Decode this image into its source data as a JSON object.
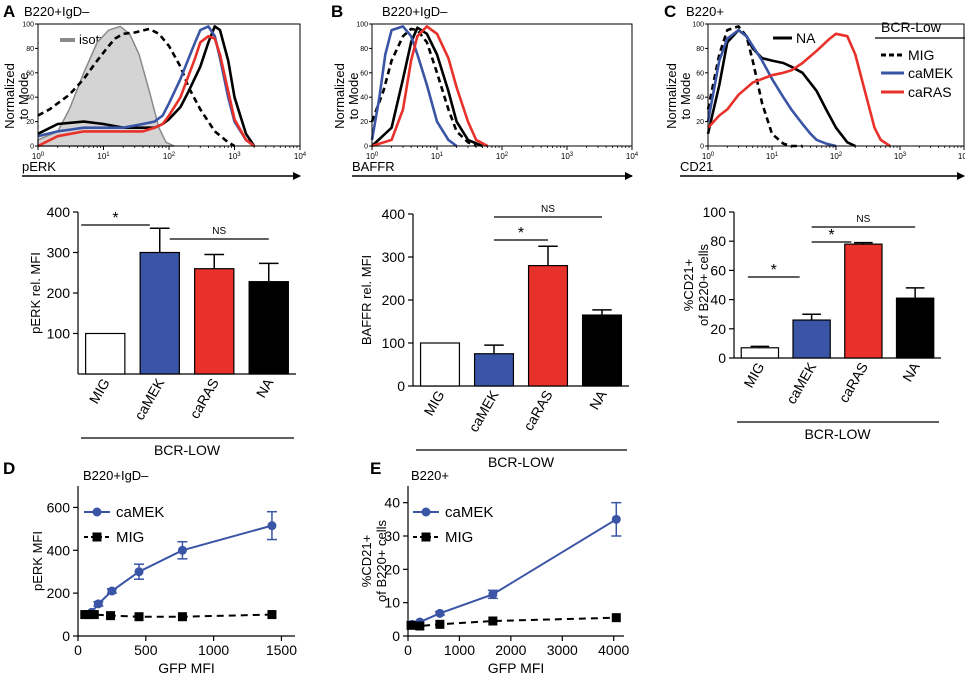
{
  "colors": {
    "mig": "#000000",
    "camek": "#3a55a6",
    "caras": "#e8312a",
    "na": "#000000",
    "isotype_fill": "#d4d4d4",
    "isotype_line": "#8a8a8a"
  },
  "panels": {
    "A": {
      "label": "A",
      "subtitle": "B220+IgD–"
    },
    "B": {
      "label": "B",
      "subtitle": "B220+IgD–"
    },
    "C": {
      "label": "C",
      "subtitle": "B220+"
    },
    "D": {
      "label": "D",
      "subtitle": "B220+IgD–"
    },
    "E": {
      "label": "E",
      "subtitle": "B220+"
    }
  },
  "histogram_ylabel": [
    "Normalized",
    "to Mode"
  ],
  "legend_c": {
    "title": "BCR-Low",
    "na": "NA",
    "items": [
      "MIG",
      "caMEK",
      "caRAS"
    ]
  },
  "isotype_label": "isotype",
  "bcr_low_label": "BCR-LOW",
  "chart_data": [
    {
      "id": "A-hist",
      "type": "line",
      "subtitle": "B220+IgD–",
      "xlabel": "pERK",
      "ylabel": "Normalized to Mode",
      "xscale": "log",
      "xlim": [
        1,
        10000
      ],
      "ylim": [
        0,
        100
      ],
      "xticks": [
        "10^0",
        "10^1",
        "10^2",
        "10^3",
        "10^4"
      ],
      "yticks": [
        0,
        20,
        40,
        60,
        80,
        100
      ],
      "series": [
        {
          "name": "isotype",
          "style": "filled-gray",
          "x": [
            1,
            2,
            3,
            5,
            8,
            12,
            18,
            25,
            35,
            50,
            70,
            90,
            120
          ],
          "y": [
            5,
            12,
            30,
            60,
            85,
            95,
            98,
            92,
            75,
            45,
            15,
            3,
            0
          ]
        },
        {
          "name": "MIG",
          "style": "dashed-black",
          "x": [
            1,
            1.5,
            2,
            3,
            5,
            8,
            12,
            15,
            20,
            30,
            50,
            70,
            100,
            150,
            200,
            300,
            500,
            800,
            1000
          ],
          "y": [
            25,
            30,
            35,
            42,
            55,
            70,
            82,
            88,
            92,
            93,
            96,
            92,
            82,
            65,
            48,
            30,
            12,
            3,
            0
          ]
        },
        {
          "name": "caMEK",
          "style": "blue",
          "x": [
            1,
            2,
            5,
            10,
            20,
            40,
            60,
            80,
            100,
            150,
            200,
            250,
            300,
            400,
            500,
            600,
            800,
            1000,
            1500,
            2000
          ],
          "y": [
            8,
            12,
            15,
            15,
            15,
            18,
            20,
            25,
            35,
            55,
            72,
            85,
            95,
            98,
            90,
            72,
            40,
            20,
            5,
            0
          ]
        },
        {
          "name": "caRAS",
          "style": "red",
          "x": [
            1,
            2,
            5,
            10,
            20,
            40,
            60,
            80,
            100,
            150,
            200,
            250,
            300,
            400,
            500,
            600,
            800,
            1000,
            1500,
            2000
          ],
          "y": [
            0,
            8,
            12,
            12,
            12,
            12,
            15,
            18,
            25,
            40,
            58,
            72,
            85,
            90,
            88,
            75,
            45,
            22,
            5,
            0
          ]
        },
        {
          "name": "NA",
          "style": "black",
          "x": [
            1,
            2,
            5,
            10,
            20,
            40,
            60,
            80,
            100,
            150,
            200,
            300,
            400,
            500,
            600,
            800,
            1000,
            1500,
            2000
          ],
          "y": [
            10,
            18,
            20,
            18,
            15,
            15,
            15,
            18,
            22,
            32,
            45,
            65,
            85,
            98,
            95,
            70,
            40,
            10,
            0
          ]
        }
      ]
    },
    {
      "id": "B-hist",
      "type": "line",
      "subtitle": "B220+IgD–",
      "xlabel": "BAFFR",
      "ylabel": "Normalized to Mode",
      "xscale": "log",
      "xlim": [
        1,
        10000
      ],
      "ylim": [
        0,
        100
      ],
      "xticks": [
        "10^0",
        "10^1",
        "10^2",
        "10^3",
        "10^4"
      ],
      "yticks": [
        0,
        20,
        40,
        60,
        80,
        100
      ],
      "series": [
        {
          "name": "MIG",
          "style": "dashed-black",
          "x": [
            1,
            1.5,
            2,
            3,
            4,
            5,
            7,
            10,
            15,
            20,
            30,
            40
          ],
          "y": [
            20,
            45,
            70,
            90,
            96,
            95,
            85,
            60,
            30,
            12,
            3,
            0
          ]
        },
        {
          "name": "caMEK",
          "style": "blue",
          "x": [
            1,
            1.3,
            1.6,
            2,
            3,
            4,
            5,
            7,
            10,
            15,
            20
          ],
          "y": [
            5,
            40,
            75,
            95,
            98,
            90,
            75,
            50,
            20,
            5,
            0
          ]
        },
        {
          "name": "caRAS",
          "style": "red",
          "x": [
            1,
            2,
            3,
            4,
            5,
            7,
            10,
            15,
            20,
            30,
            40,
            60
          ],
          "y": [
            0,
            5,
            30,
            70,
            90,
            98,
            92,
            72,
            48,
            20,
            5,
            0
          ]
        },
        {
          "name": "NA",
          "style": "black",
          "x": [
            1,
            2,
            3,
            4,
            5,
            7,
            10,
            15,
            20,
            30,
            50
          ],
          "y": [
            0,
            15,
            55,
            85,
            97,
            92,
            75,
            45,
            20,
            5,
            0
          ]
        }
      ]
    },
    {
      "id": "C-hist",
      "type": "line",
      "subtitle": "B220+",
      "xlabel": "CD21",
      "ylabel": "Normalized to Mode",
      "xscale": "log",
      "xlim": [
        1,
        10000
      ],
      "ylim": [
        0,
        100
      ],
      "xticks": [
        "10^0",
        "10^1",
        "10^2",
        "10^3",
        "10^4"
      ],
      "yticks": [
        0,
        20,
        40,
        60,
        80,
        100
      ],
      "series": [
        {
          "name": "MIG",
          "style": "dashed-black",
          "x": [
            1,
            1.5,
            2,
            3,
            4,
            5,
            7,
            10,
            15,
            20,
            30
          ],
          "y": [
            30,
            75,
            95,
            98,
            90,
            70,
            35,
            10,
            2,
            0,
            0
          ]
        },
        {
          "name": "caMEK",
          "style": "blue",
          "x": [
            1,
            1.5,
            2,
            3,
            4,
            5,
            7,
            10,
            15,
            20,
            30,
            40,
            50,
            70,
            100
          ],
          "y": [
            20,
            70,
            88,
            95,
            90,
            82,
            70,
            55,
            40,
            30,
            18,
            10,
            5,
            2,
            0
          ]
        },
        {
          "name": "caRAS",
          "style": "red",
          "x": [
            1,
            1.5,
            2,
            3,
            5,
            7,
            10,
            15,
            20,
            30,
            50,
            80,
            100,
            150,
            200,
            300,
            400,
            500,
            700
          ],
          "y": [
            15,
            25,
            30,
            42,
            52,
            55,
            58,
            60,
            62,
            68,
            78,
            88,
            92,
            90,
            75,
            40,
            15,
            5,
            0
          ]
        },
        {
          "name": "NA",
          "style": "black",
          "x": [
            1,
            1.5,
            2,
            3,
            4,
            5,
            7,
            10,
            15,
            20,
            30,
            50,
            70,
            100,
            150,
            200
          ],
          "y": [
            10,
            50,
            85,
            95,
            90,
            80,
            72,
            70,
            68,
            65,
            60,
            45,
            30,
            15,
            3,
            0
          ]
        }
      ]
    },
    {
      "id": "A-bar",
      "type": "bar",
      "ylabel": "pERK rel. MFI",
      "ylim": [
        0,
        400
      ],
      "yticks": [
        100,
        200,
        300,
        400
      ],
      "categories": [
        "MIG",
        "caMEK",
        "caRAS",
        "NA"
      ],
      "values": [
        100,
        300,
        260,
        228
      ],
      "errors": [
        0,
        60,
        35,
        45
      ],
      "group_label": "BCR-LOW",
      "significance": [
        {
          "from": 0,
          "to": 1,
          "label": "*"
        },
        {
          "from": 1,
          "to": 3,
          "label": "NS"
        }
      ]
    },
    {
      "id": "B-bar",
      "type": "bar",
      "ylabel": "BAFFR rel. MFI",
      "ylim": [
        0,
        400
      ],
      "yticks": [
        0,
        100,
        200,
        300,
        400
      ],
      "categories": [
        "MIG",
        "caMEK",
        "caRAS",
        "NA"
      ],
      "values": [
        100,
        75,
        280,
        165
      ],
      "errors": [
        0,
        20,
        45,
        12
      ],
      "group_label": "BCR-LOW",
      "significance": [
        {
          "from": 1,
          "to": 2,
          "label": "*"
        },
        {
          "from": 1,
          "to": 3,
          "label": "NS"
        }
      ]
    },
    {
      "id": "C-bar",
      "type": "bar",
      "ylabel": "%CD21+ of B220+ cells",
      "ylim": [
        0,
        100
      ],
      "yticks": [
        0,
        20,
        40,
        60,
        80,
        100
      ],
      "categories": [
        "MIG",
        "caMEK",
        "caRAS",
        "NA"
      ],
      "values": [
        7,
        26,
        78,
        41
      ],
      "errors": [
        1,
        4,
        1,
        7
      ],
      "group_label": "BCR-LOW",
      "significance": [
        {
          "from": 0,
          "to": 1,
          "label": "*"
        },
        {
          "from": 1,
          "to": 2,
          "label": "*"
        },
        {
          "from": 1,
          "to": 3,
          "label": "NS"
        }
      ]
    },
    {
      "id": "D-line",
      "type": "line",
      "subtitle": "B220+IgD–",
      "xlabel": "GFP MFI",
      "ylabel": "pERK MFI",
      "xlim": [
        0,
        1600
      ],
      "ylim": [
        0,
        700
      ],
      "xticks": [
        0,
        500,
        1000,
        1500
      ],
      "yticks": [
        0,
        200,
        400,
        600
      ],
      "series": [
        {
          "name": "caMEK",
          "x": [
            100,
            150,
            250,
            450,
            770,
            1430
          ],
          "y": [
            110,
            150,
            210,
            300,
            400,
            515
          ],
          "err": [
            0,
            10,
            10,
            35,
            40,
            65
          ]
        },
        {
          "name": "MIG",
          "x": [
            50,
            80,
            120,
            240,
            450,
            770,
            1430
          ],
          "y": [
            100,
            100,
            100,
            95,
            90,
            90,
            100
          ],
          "err": [
            0,
            0,
            0,
            0,
            0,
            0,
            0
          ]
        }
      ]
    },
    {
      "id": "E-line",
      "type": "line",
      "subtitle": "B220+",
      "xlabel": "GFP MFI",
      "ylabel": "%CD21+ of B220+ cells",
      "xlim": [
        0,
        4200
      ],
      "ylim": [
        0,
        45
      ],
      "xticks": [
        0,
        1000,
        2000,
        3000,
        4000
      ],
      "yticks": [
        0,
        10,
        20,
        30,
        40
      ],
      "series": [
        {
          "name": "caMEK",
          "x": [
            80,
            230,
            620,
            1650,
            4050
          ],
          "y": [
            3.5,
            4.2,
            6.8,
            12.5,
            35
          ],
          "err": [
            0,
            0,
            0.5,
            1.2,
            5
          ]
        },
        {
          "name": "MIG",
          "x": [
            60,
            230,
            620,
            1650,
            4050
          ],
          "y": [
            3.2,
            3.0,
            3.5,
            4.5,
            5.5
          ],
          "err": [
            0,
            0,
            0,
            0,
            0
          ]
        }
      ]
    }
  ]
}
